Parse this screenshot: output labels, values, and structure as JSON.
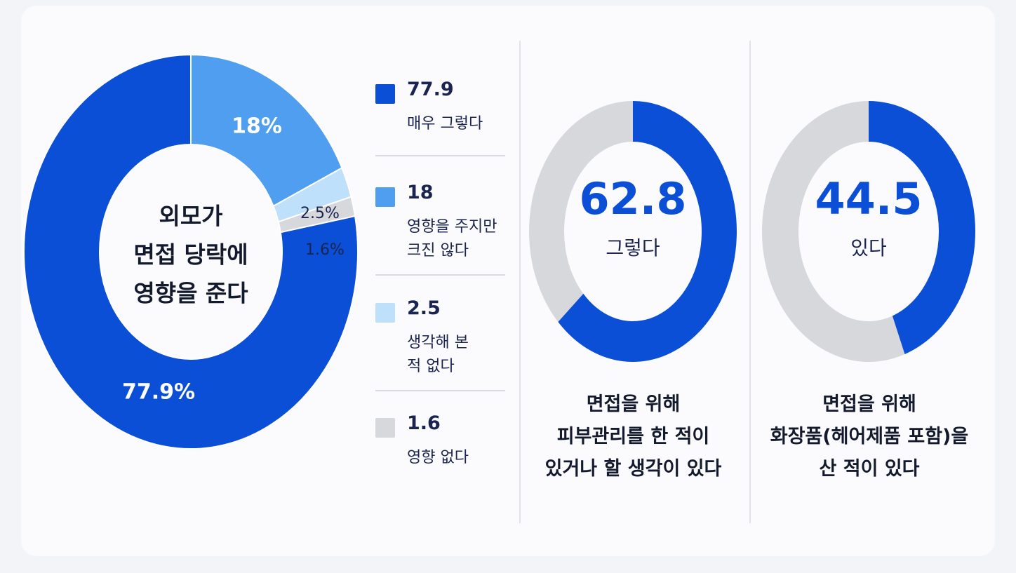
{
  "chart_data": [
    {
      "type": "pie",
      "center_title": [
        "외모가",
        "면접 당락에",
        "영향을 준다"
      ],
      "slices": [
        {
          "value": 77.9,
          "label": "77.9%",
          "legend_value": "77.9",
          "legend_label": [
            "매우 그렇다"
          ],
          "color": "#0b4fd6"
        },
        {
          "value": 18,
          "label": "18%",
          "legend_value": "18",
          "legend_label": [
            "영향을 주지만",
            "크진 않다"
          ],
          "color": "#4f9ef0"
        },
        {
          "value": 2.5,
          "label": "2.5%",
          "legend_value": "2.5",
          "legend_label": [
            "생각해 본",
            "적 없다"
          ],
          "color": "#bfe0fa"
        },
        {
          "value": 1.6,
          "label": "1.6%",
          "legend_value": "1.6",
          "legend_label": [
            "영향 없다"
          ],
          "color": "#d7d8dc"
        }
      ]
    },
    {
      "type": "pie",
      "value": 62.8,
      "center_value": "62.8",
      "center_label": "그렇다",
      "caption": [
        "면접을 위해",
        "피부관리를 한 적이",
        "있거나 할 생각이 있다"
      ],
      "color": "#0b4fd6",
      "rest_color": "#d7d8dc"
    },
    {
      "type": "pie",
      "value": 44.5,
      "center_value": "44.5",
      "center_label": "있다",
      "caption": [
        "면접을 위해",
        "화장품(헤어제품 포함)을",
        "산 적이 있다"
      ],
      "color": "#0b4fd6",
      "rest_color": "#d7d8dc"
    }
  ]
}
